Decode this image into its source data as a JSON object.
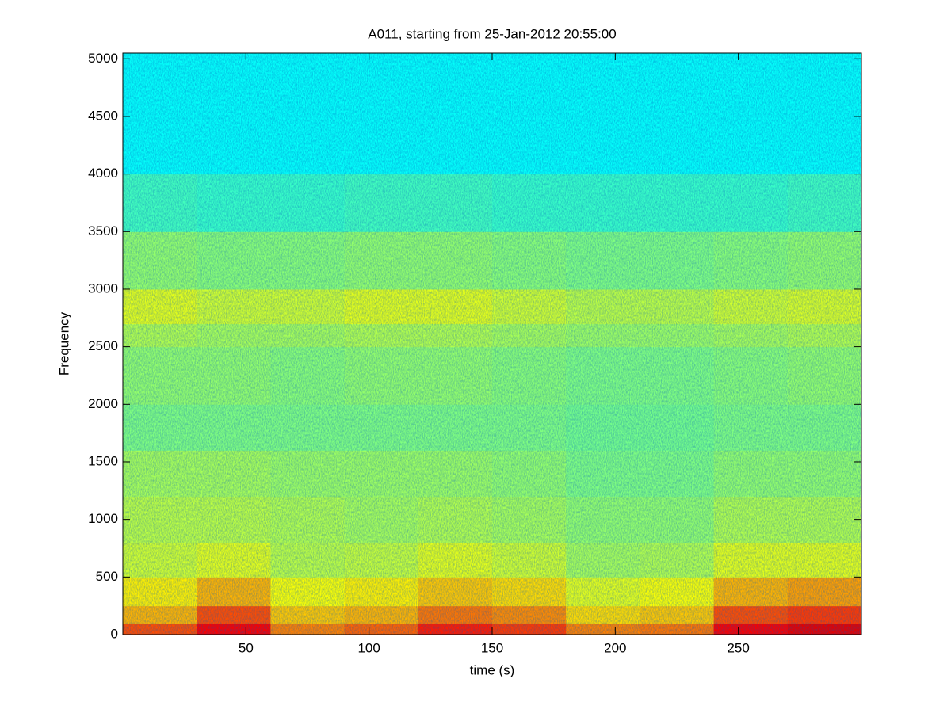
{
  "chart_data": {
    "type": "spectrogram",
    "title": "A011, starting from 25-Jan-2012 20:55:00",
    "x_label": "time (s)",
    "y_label": "Frequency",
    "xlim": [
      0,
      300
    ],
    "ylim": [
      0,
      5050
    ],
    "xticks": [
      50,
      100,
      150,
      200,
      250
    ],
    "yticks": [
      0,
      500,
      1000,
      1500,
      2000,
      2500,
      3000,
      3500,
      4000,
      4500,
      5000
    ],
    "colormap": "jet",
    "clim": [
      0,
      1
    ],
    "x_bins": [
      0,
      30,
      60,
      90,
      120,
      150,
      180,
      210,
      240,
      270,
      300
    ],
    "y_bins": [
      0,
      100,
      250,
      500,
      800,
      1200,
      1600,
      2000,
      2500,
      2700,
      3000,
      3500,
      4000,
      5050
    ],
    "values": [
      [
        0.8,
        0.88,
        0.75,
        0.78,
        0.85,
        0.82,
        0.75,
        0.76,
        0.88,
        0.9
      ],
      [
        0.7,
        0.8,
        0.68,
        0.7,
        0.76,
        0.74,
        0.66,
        0.68,
        0.8,
        0.82
      ],
      [
        0.64,
        0.7,
        0.62,
        0.64,
        0.68,
        0.66,
        0.6,
        0.62,
        0.7,
        0.72
      ],
      [
        0.58,
        0.6,
        0.56,
        0.57,
        0.6,
        0.58,
        0.54,
        0.55,
        0.6,
        0.6
      ],
      [
        0.56,
        0.56,
        0.55,
        0.54,
        0.55,
        0.54,
        0.52,
        0.52,
        0.55,
        0.55
      ],
      [
        0.54,
        0.54,
        0.53,
        0.53,
        0.53,
        0.52,
        0.5,
        0.5,
        0.52,
        0.52
      ],
      [
        0.5,
        0.5,
        0.5,
        0.5,
        0.5,
        0.5,
        0.49,
        0.49,
        0.5,
        0.5
      ],
      [
        0.52,
        0.52,
        0.51,
        0.52,
        0.52,
        0.51,
        0.5,
        0.5,
        0.51,
        0.52
      ],
      [
        0.55,
        0.54,
        0.54,
        0.55,
        0.55,
        0.54,
        0.53,
        0.53,
        0.54,
        0.55
      ],
      [
        0.6,
        0.58,
        0.58,
        0.6,
        0.6,
        0.58,
        0.56,
        0.56,
        0.58,
        0.59
      ],
      [
        0.52,
        0.51,
        0.51,
        0.52,
        0.52,
        0.51,
        0.5,
        0.5,
        0.51,
        0.52
      ],
      [
        0.44,
        0.43,
        0.43,
        0.44,
        0.44,
        0.43,
        0.43,
        0.43,
        0.43,
        0.44
      ],
      [
        0.38,
        0.38,
        0.38,
        0.38,
        0.38,
        0.38,
        0.38,
        0.38,
        0.38,
        0.38
      ]
    ]
  }
}
